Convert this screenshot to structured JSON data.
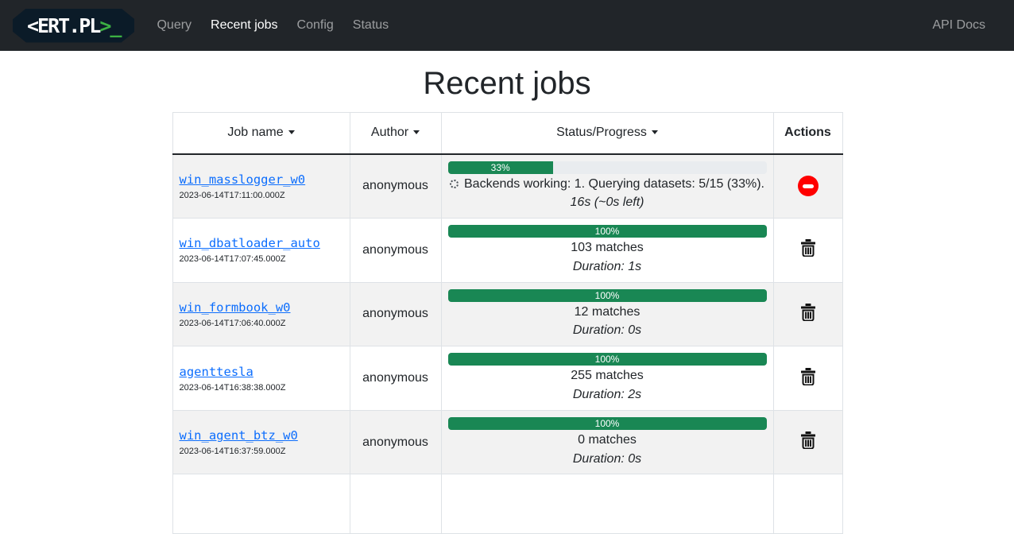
{
  "navbar": {
    "logo_white": "<ERT.PL",
    "logo_green": ">_",
    "links": [
      {
        "label": "Query",
        "active": false
      },
      {
        "label": "Recent jobs",
        "active": true
      },
      {
        "label": "Config",
        "active": false
      },
      {
        "label": "Status",
        "active": false
      }
    ],
    "api_docs_label": "API Docs"
  },
  "page": {
    "title": "Recent jobs"
  },
  "table": {
    "headers": [
      {
        "label": "Job name",
        "sortable": true
      },
      {
        "label": "Author",
        "sortable": true
      },
      {
        "label": "Status/Progress",
        "sortable": true
      },
      {
        "label": "Actions",
        "sortable": false
      }
    ],
    "rows": [
      {
        "job_name": "win_masslogger_w0",
        "timestamp": "2023-06-14T17:11:00.000Z",
        "author": "anonymous",
        "progress_percent": 33,
        "progress_label": "33%",
        "in_progress": true,
        "status_text": "Backends working: 1. Querying datasets: 5/15 (33%).",
        "duration_text": "16s (~0s left)",
        "action": "cancel",
        "action_icon": "stop-icon"
      },
      {
        "job_name": "win_dbatloader_auto",
        "timestamp": "2023-06-14T17:07:45.000Z",
        "author": "anonymous",
        "progress_percent": 100,
        "progress_label": "100%",
        "in_progress": false,
        "status_text": "103 matches",
        "duration_text": "Duration: 1s",
        "action": "delete",
        "action_icon": "trash-icon"
      },
      {
        "job_name": "win_formbook_w0",
        "timestamp": "2023-06-14T17:06:40.000Z",
        "author": "anonymous",
        "progress_percent": 100,
        "progress_label": "100%",
        "in_progress": false,
        "status_text": "12 matches",
        "duration_text": "Duration: 0s",
        "action": "delete",
        "action_icon": "trash-icon"
      },
      {
        "job_name": "agenttesla",
        "timestamp": "2023-06-14T16:38:38.000Z",
        "author": "anonymous",
        "progress_percent": 100,
        "progress_label": "100%",
        "in_progress": false,
        "status_text": "255 matches",
        "duration_text": "Duration: 2s",
        "action": "delete",
        "action_icon": "trash-icon"
      },
      {
        "job_name": "win_agent_btz_w0",
        "timestamp": "2023-06-14T16:37:59.000Z",
        "author": "anonymous",
        "progress_percent": 100,
        "progress_label": "100%",
        "in_progress": false,
        "status_text": "0 matches",
        "duration_text": "Duration: 0s",
        "action": "delete",
        "action_icon": "trash-icon"
      },
      {
        "job_name": "",
        "timestamp": "",
        "author": "",
        "progress_percent": null,
        "progress_label": null,
        "in_progress": false,
        "status_text": "",
        "duration_text": "",
        "action": "none",
        "action_icon": ""
      }
    ]
  },
  "colors": {
    "navbar_bg": "#212529",
    "logo_badge_bg": "#0b1b28",
    "logo_green": "#3cb043",
    "progress_green": "#198754",
    "progress_track": "#e9ecef",
    "cancel_red": "#ff0000",
    "link_blue": "#0d6efd",
    "stripe_gray": "#f2f2f2"
  }
}
